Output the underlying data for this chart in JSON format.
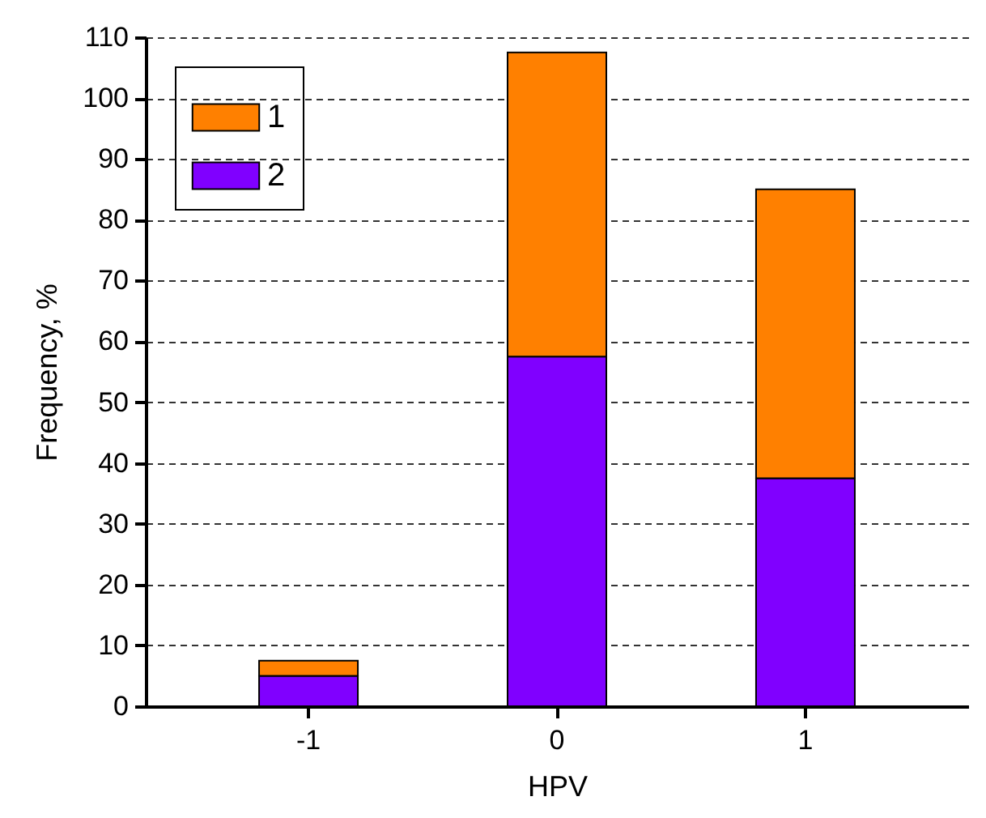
{
  "chart_data": {
    "type": "bar",
    "stacked": true,
    "xlabel": "HPV",
    "ylabel": "Frequency, %",
    "categories": [
      "-1",
      "0",
      "1"
    ],
    "series": [
      {
        "name": "2",
        "color": "#8000ff",
        "values": [
          5,
          57.5,
          37.5
        ]
      },
      {
        "name": "1",
        "color": "#ff8000",
        "values": [
          2.5,
          50,
          47.5
        ]
      }
    ],
    "ylim": [
      0,
      110
    ],
    "yticks": [
      0,
      10,
      20,
      30,
      40,
      50,
      60,
      70,
      80,
      90,
      100,
      110
    ],
    "grid": "y",
    "legend": "top left"
  }
}
